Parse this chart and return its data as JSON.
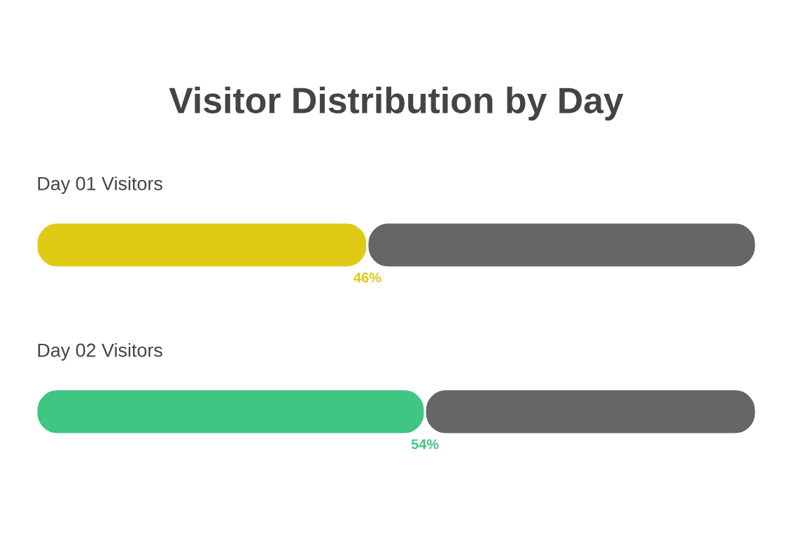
{
  "chart_data": {
    "type": "bar",
    "orientation": "horizontal",
    "stacked": true,
    "title": "Visitor Distribution by Day",
    "categories": [
      "Day 01 Visitors",
      "Day 02 Visitors"
    ],
    "series": [
      {
        "colors": [
          "#e0ca16",
          "#3ec682"
        ],
        "values": [
          46,
          54
        ],
        "value_labels": [
          "46%",
          "54%"
        ]
      },
      {
        "color": "#666666",
        "values": [
          54,
          46
        ]
      }
    ]
  }
}
